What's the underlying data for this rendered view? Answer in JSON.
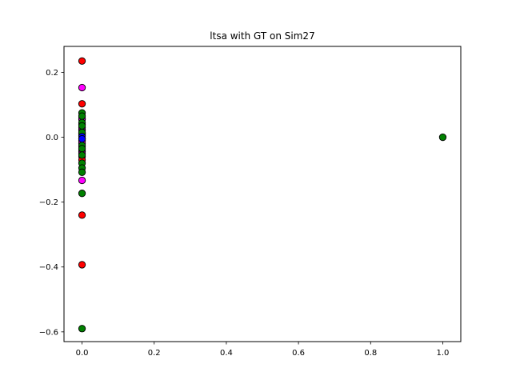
{
  "chart_data": {
    "type": "scatter",
    "title": "ltsa with GT on Sim27",
    "xlabel": "",
    "ylabel": "",
    "xlim": [
      -0.05,
      1.05
    ],
    "ylim": [
      -0.63,
      0.28
    ],
    "xticks": [
      0.0,
      0.2,
      0.4,
      0.6,
      0.8,
      1.0
    ],
    "xtick_labels": [
      "0.0",
      "0.2",
      "0.4",
      "0.6",
      "0.8",
      "1.0"
    ],
    "yticks": [
      0.2,
      0.0,
      -0.2,
      -0.4,
      -0.6
    ],
    "ytick_labels": [
      "0.2",
      "0.0",
      "−0.2",
      "−0.4",
      "−0.6"
    ],
    "grid": false,
    "legend": false,
    "series": [
      {
        "color": "#ff0000",
        "points": [
          [
            0,
            0.235
          ],
          [
            0,
            0.103
          ],
          [
            0,
            0.055
          ],
          [
            0,
            0.04
          ],
          [
            0,
            0.025
          ],
          [
            0,
            0.02
          ],
          [
            0,
            0.012
          ],
          [
            0,
            0.005
          ],
          [
            0,
            -0.01
          ],
          [
            0,
            -0.02
          ],
          [
            0,
            -0.03
          ],
          [
            0,
            -0.045
          ],
          [
            0,
            -0.06
          ],
          [
            0,
            -0.07
          ],
          [
            0,
            -0.24
          ],
          [
            0,
            -0.393
          ]
        ]
      },
      {
        "color": "#ff00ff",
        "points": [
          [
            0,
            0.153
          ],
          [
            0,
            0.058
          ],
          [
            0,
            0.03
          ],
          [
            0,
            0.01
          ],
          [
            0,
            -0.015
          ],
          [
            0,
            -0.04
          ],
          [
            0,
            -0.05
          ],
          [
            0,
            -0.133
          ]
        ]
      },
      {
        "color": "#008000",
        "points": [
          [
            0,
            0.075
          ],
          [
            0,
            0.065
          ],
          [
            0,
            0.045
          ],
          [
            0,
            0.035
          ],
          [
            0,
            0.015
          ],
          [
            0,
            -0.005
          ],
          [
            0,
            -0.025
          ],
          [
            0,
            -0.035
          ],
          [
            0,
            -0.055
          ],
          [
            0,
            -0.08
          ],
          [
            0,
            -0.095
          ],
          [
            0,
            -0.108
          ],
          [
            0,
            -0.173
          ],
          [
            0,
            -0.59
          ],
          [
            1.0,
            0.0
          ]
        ]
      },
      {
        "color": "#0000ff",
        "points": [
          [
            0,
            0.002
          ],
          [
            0,
            -0.005
          ]
        ]
      }
    ]
  }
}
